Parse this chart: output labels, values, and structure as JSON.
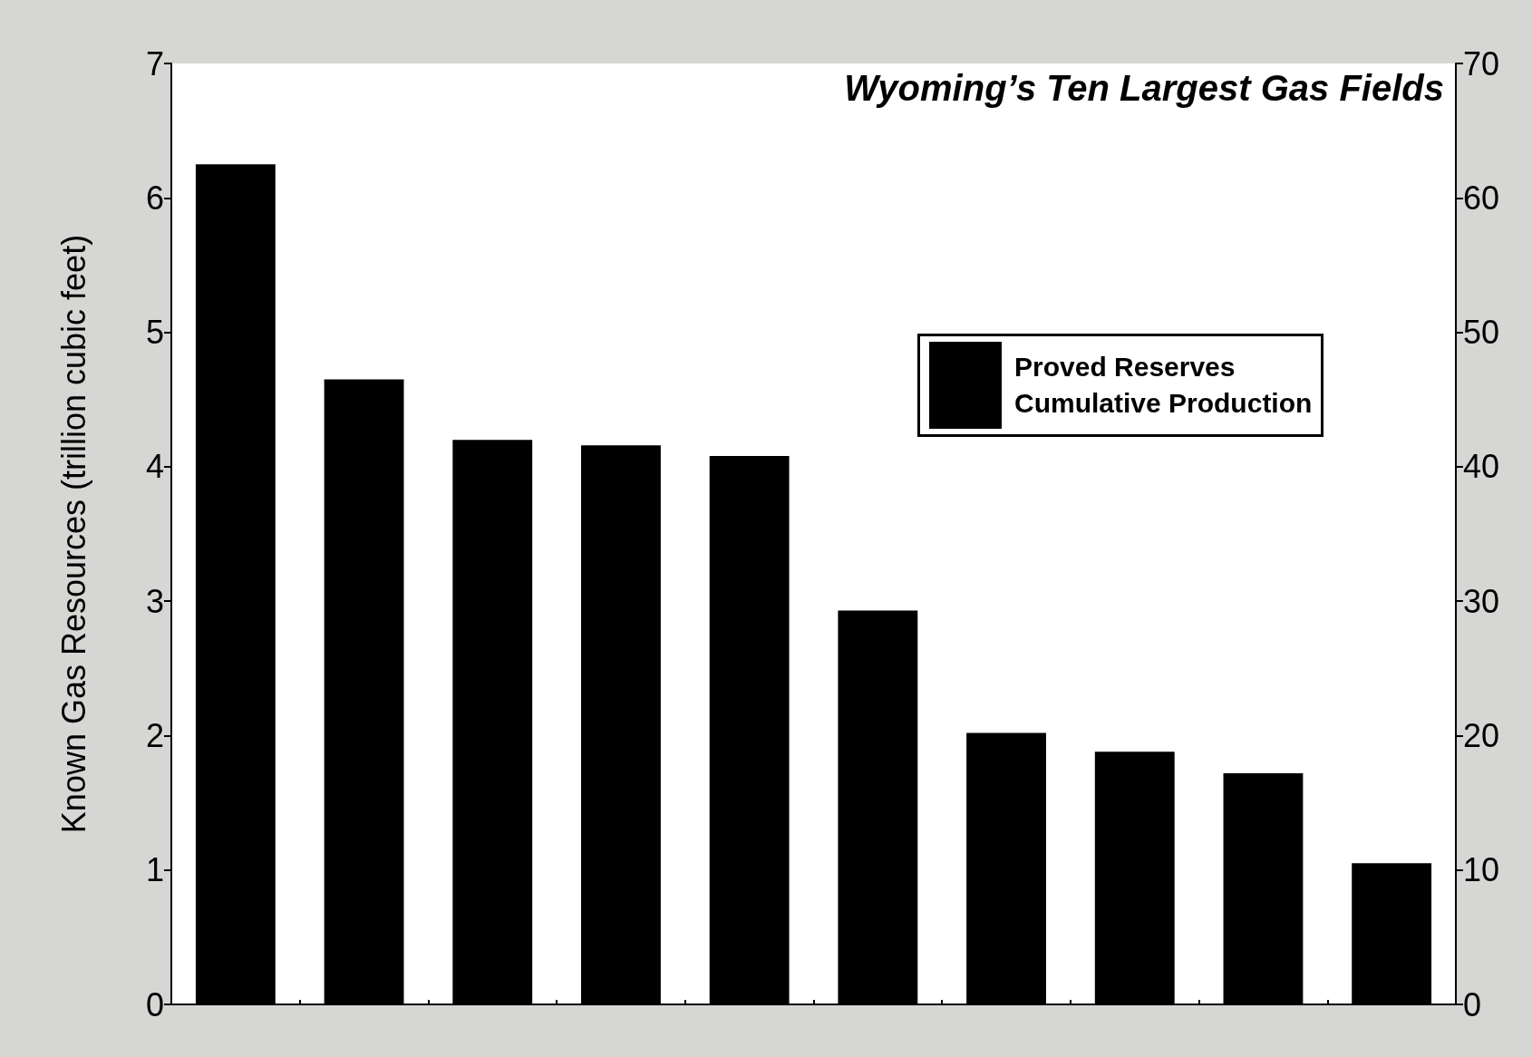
{
  "chart_data": {
    "type": "bar",
    "title": "Wyoming’s Ten Largest Gas Fields",
    "ylabel": "Known Gas Resources (trillion cubic feet)",
    "categories": [
      null,
      null,
      null,
      null,
      null,
      null,
      null,
      null,
      null,
      null
    ],
    "values": [
      6.25,
      4.65,
      4.2,
      4.16,
      4.08,
      2.93,
      2.02,
      1.88,
      1.72,
      1.05
    ],
    "color": "#000000",
    "ylim": [
      0,
      7
    ],
    "yticks": [
      0,
      1,
      2,
      3,
      4,
      5,
      6,
      7
    ],
    "y2lim": [
      0,
      70
    ],
    "y2ticks": [
      0,
      10,
      20,
      30,
      40,
      50,
      60,
      70
    ],
    "annotations": [
      "Proved Reserves",
      "Cumulative Production"
    ],
    "grid": false
  }
}
